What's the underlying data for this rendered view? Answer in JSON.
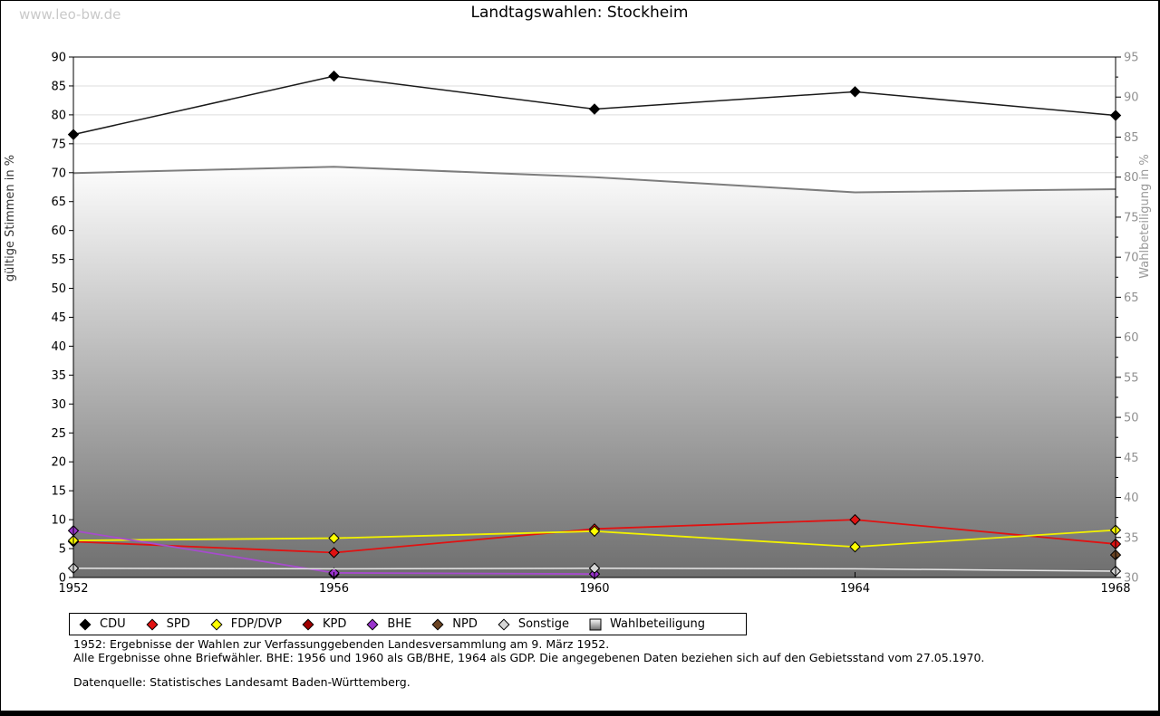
{
  "page": {
    "watermark": "www.leo-bw.de"
  },
  "chart_data": {
    "type": "line",
    "title": "Landtagswahlen: Stockheim",
    "x": [
      "1952",
      "1956",
      "1960",
      "1964",
      "1968"
    ],
    "left_axis": {
      "label": "gültige Stimmen in %",
      "min": 0,
      "max": 90,
      "tick_step": 5
    },
    "right_axis": {
      "label": "Wahlbeteiligung in %",
      "min": 30,
      "max": 95,
      "tick_step": 5
    },
    "grid": true,
    "legend_position": "bottom",
    "series": [
      {
        "name": "CDU",
        "axis": "left",
        "type": "line",
        "marker": "diamond",
        "color": "#000000",
        "line_color": "#1a1a1a",
        "line_width": 1.5,
        "values": [
          76.6,
          86.7,
          81.0,
          84.0,
          79.9
        ]
      },
      {
        "name": "SPD",
        "axis": "left",
        "type": "line",
        "marker": "diamond",
        "color": "#e01212",
        "line_color": "#e01212",
        "line_width": 1.8,
        "values": [
          6.2,
          4.3,
          8.4,
          10.0,
          5.8
        ]
      },
      {
        "name": "FDP/DVP",
        "axis": "left",
        "type": "line",
        "marker": "diamond",
        "color": "#ffff00",
        "line_color": "#f2f200",
        "line_width": 1.8,
        "values": [
          6.4,
          6.8,
          8.0,
          5.3,
          8.2
        ]
      },
      {
        "name": "KPD",
        "axis": "left",
        "type": "line",
        "marker": "diamond",
        "color": "#a00000",
        "line_color": "#a00000",
        "line_width": 1.5,
        "values": [
          null,
          0.6,
          null,
          null,
          null
        ]
      },
      {
        "name": "BHE",
        "axis": "left",
        "type": "line",
        "marker": "diamond",
        "color": "#9933cc",
        "line_color": "#a64ccc",
        "line_width": 1.8,
        "values": [
          8.1,
          0.8,
          0.6,
          null,
          null
        ]
      },
      {
        "name": "NPD",
        "axis": "left",
        "type": "line",
        "marker": "diamond",
        "color": "#6b4423",
        "line_color": "#6b4423",
        "line_width": 1.5,
        "values": [
          null,
          null,
          null,
          null,
          3.9
        ]
      },
      {
        "name": "Sonstige",
        "axis": "left",
        "type": "line",
        "marker": "diamond",
        "color": "#d6d6d6",
        "line_color": "#e8e8e8",
        "line_width": 1.5,
        "marker_mask": [
          1,
          0,
          1,
          0,
          1
        ],
        "values": [
          1.6,
          1.5,
          1.6,
          1.5,
          1.1
        ]
      },
      {
        "name": "Wahlbeteiligung",
        "axis": "right",
        "type": "area",
        "marker": "square",
        "color": "#7d7d7d",
        "line_color": "#7d7d7d",
        "line_width": 2,
        "area_gradient": [
          "#fcfcfc",
          "#6e6e6e"
        ],
        "values": [
          80.5,
          81.3,
          80.0,
          78.1,
          78.5
        ]
      }
    ]
  },
  "footnotes": [
    "1952: Ergebnisse der Wahlen zur Verfassunggebenden Landesversammlung am 9. März 1952.",
    "Alle Ergebnisse ohne Briefwähler. BHE: 1956 und 1960 als GB/BHE, 1964 als GDP. Die angegebenen Daten beziehen sich auf den Gebietsstand vom 27.05.1970.",
    "Datenquelle: Statistisches Landesamt Baden-Württemberg."
  ],
  "colors": {
    "gridline": "#dedede",
    "frame": "#000000",
    "right_axis_text": "#919191",
    "left_axis_text": "#000000",
    "axis_title_left": "#333333",
    "axis_title_right": "#999999",
    "watermark": "#c9c9c9"
  }
}
